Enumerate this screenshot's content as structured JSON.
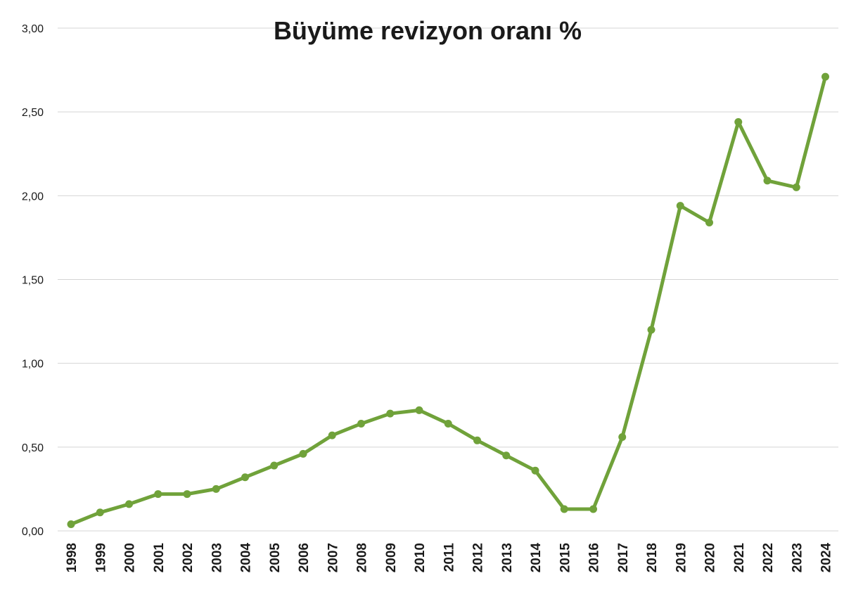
{
  "chart_data": {
    "type": "line",
    "title": "Büyüme revizyon oranı %",
    "xlabel": "",
    "ylabel": "",
    "ylim": [
      0,
      3
    ],
    "yticks": [
      "0,00",
      "0,50",
      "1,00",
      "1,50",
      "2,00",
      "2,50",
      "3,00"
    ],
    "ytick_values": [
      0,
      0.5,
      1,
      1.5,
      2,
      2.5,
      3
    ],
    "grid": "horizontal",
    "legend": "none",
    "line_color": "#70a23a",
    "categories": [
      "1998",
      "1999",
      "2000",
      "2001",
      "2002",
      "2003",
      "2004",
      "2005",
      "2006",
      "2007",
      "2008",
      "2009",
      "2010",
      "2011",
      "2012",
      "2013",
      "2014",
      "2015",
      "2016",
      "2017",
      "2018",
      "2019",
      "2020",
      "2021",
      "2022",
      "2023",
      "2024"
    ],
    "series": [
      {
        "values": [
          0.04,
          0.11,
          0.16,
          0.22,
          0.22,
          0.25,
          0.32,
          0.39,
          0.46,
          0.57,
          0.64,
          0.7,
          0.72,
          0.64,
          0.54,
          0.45,
          0.36,
          0.13,
          0.13,
          0.56,
          1.2,
          1.94,
          1.84,
          2.44,
          2.09,
          2.05,
          2.71
        ]
      }
    ]
  }
}
